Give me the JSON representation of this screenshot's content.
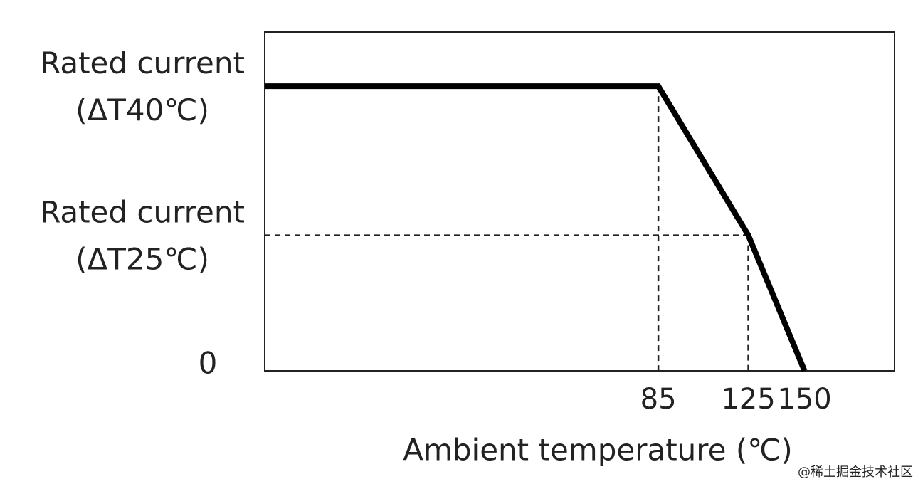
{
  "chart_data": {
    "type": "line",
    "x_label": "Ambient temperature (℃)",
    "series": [
      {
        "x": [
          -90,
          85,
          125,
          150
        ],
        "values": [
          84,
          84,
          40,
          0
        ],
        "color": "#000000"
      }
    ],
    "xlim": [
      -90,
      190
    ],
    "xticks": [
      85,
      125,
      150
    ],
    "ylim": [
      0,
      100
    ],
    "yticks": [
      {
        "value": 84,
        "label": "Rated current\n(ΔT40℃)"
      },
      {
        "value": 40,
        "label": "Rated current\n(ΔT25℃)"
      },
      0
    ],
    "watermark": "@稀土掘金技术社区"
  }
}
